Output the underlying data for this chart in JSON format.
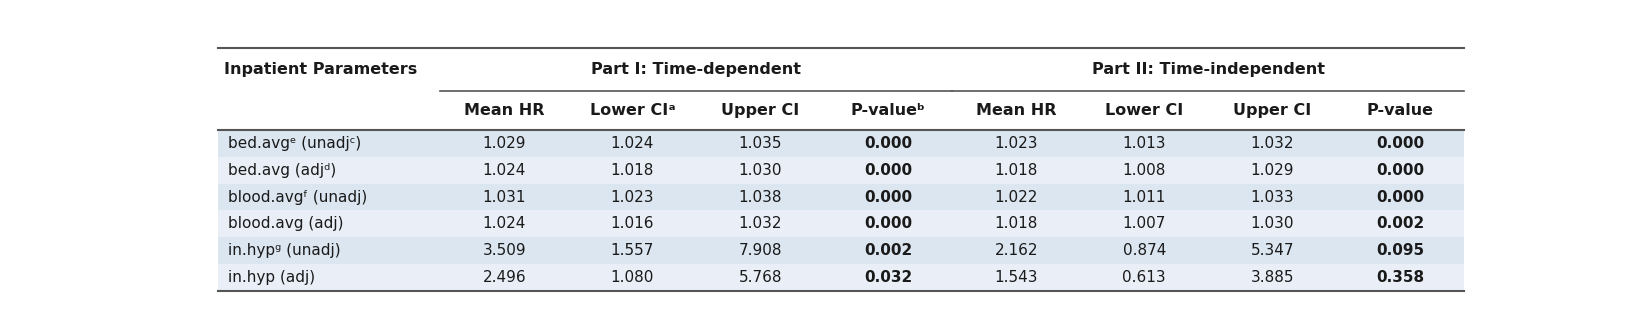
{
  "title_col": "Inpatient Parameters",
  "part1_header": "Part I: Time-dependent",
  "part2_header": "Part II: Time-independent",
  "col_headers": [
    "Mean HR",
    "Lower CIᵃ",
    "Upper CI",
    "P-valueᵇ",
    "Mean HR",
    "Lower CI",
    "Upper CI",
    "P-value"
  ],
  "row_labels": [
    "bed.avgᵉ (unadjᶜ)",
    "bed.avg (adjᵈ)",
    "blood.avgᶠ (unadj)",
    "blood.avg (adj)",
    "in.hypᵍ (unadj)",
    "in.hyp (adj)"
  ],
  "data": [
    [
      "1.029",
      "1.024",
      "1.035",
      "0.000",
      "1.023",
      "1.013",
      "1.032",
      "0.000"
    ],
    [
      "1.024",
      "1.018",
      "1.030",
      "0.000",
      "1.018",
      "1.008",
      "1.029",
      "0.000"
    ],
    [
      "1.031",
      "1.023",
      "1.038",
      "0.000",
      "1.022",
      "1.011",
      "1.033",
      "0.000"
    ],
    [
      "1.024",
      "1.016",
      "1.032",
      "0.000",
      "1.018",
      "1.007",
      "1.030",
      "0.002"
    ],
    [
      "3.509",
      "1.557",
      "7.908",
      "0.002",
      "2.162",
      "0.874",
      "5.347",
      "0.095"
    ],
    [
      "2.496",
      "1.080",
      "5.768",
      "0.032",
      "1.543",
      "0.613",
      "3.885",
      "0.358"
    ]
  ],
  "pvalue_bold_cols": [
    3,
    7
  ],
  "row_bg_odd": "#dce6f1",
  "row_bg_even": "#eaeff7",
  "text_color": "#1a1a1a",
  "border_color": "#555555",
  "font_size": 11,
  "header_font_size": 11.5
}
